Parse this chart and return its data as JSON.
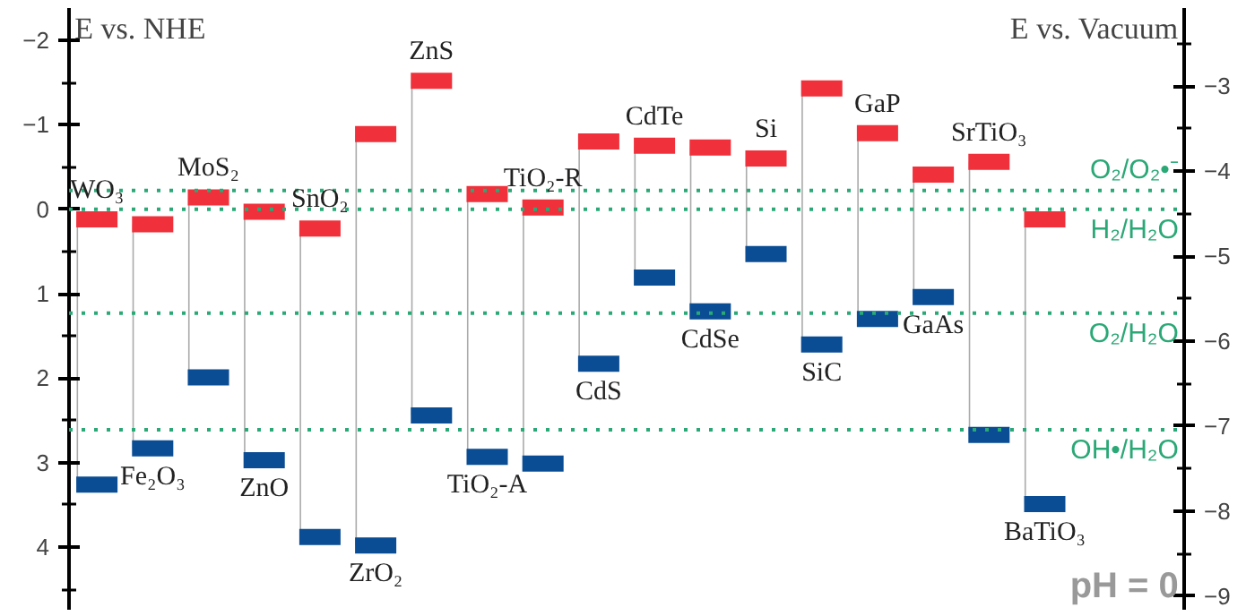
{
  "chart_data": {
    "type": "scatter",
    "ylabel": "E vs. NHE",
    "y2label": "E vs. Vacuum",
    "categories": [
      null,
      null,
      null,
      null,
      null,
      null,
      null,
      null,
      null,
      null,
      null,
      null,
      null,
      null,
      null,
      null,
      null,
      null,
      null,
      null
    ],
    "series": [
      {
        "color": "#f0303a",
        "values": [
          0.12,
          0.18,
          -0.14,
          0.03,
          0.23,
          -0.89,
          -1.52,
          -0.18,
          -0.02,
          -0.8,
          -0.75,
          -0.73,
          -0.6,
          -1.43,
          -0.9,
          -0.41,
          -0.56,
          0.12,
          null,
          null
        ]
      },
      {
        "color": "#0a4d94",
        "values": [
          3.26,
          2.83,
          1.99,
          2.97,
          3.88,
          3.98,
          2.44,
          2.93,
          3.01,
          1.83,
          0.81,
          1.21,
          0.53,
          1.6,
          1.3,
          1.04,
          2.67,
          3.49,
          null,
          null
        ]
      }
    ],
    "ylim": [
      4.74,
      -2.38
    ],
    "yticks": [
      -2,
      -1,
      0,
      1,
      2,
      3,
      4
    ],
    "y2lim": [
      -9.16,
      -2.08
    ],
    "y2ticks": [
      -3,
      -4,
      -5,
      -6,
      -7,
      -8,
      -9
    ],
    "ref_lines": [
      {
        "axis": "y",
        "value": -0.22,
        "label": "O₂/O₂•⁻",
        "color": "#2aa876",
        "line_style": "dotted"
      },
      {
        "axis": "y",
        "value": 0,
        "label": "H₂/H₂O",
        "color": "#2aa876",
        "line_style": "dotted"
      },
      {
        "axis": "y",
        "value": 1.23,
        "label": "O₂/H₂O",
        "color": "#2aa876",
        "line_style": "dotted"
      },
      {
        "axis": "y",
        "value": 2.61,
        "label": "OH•/H₂O",
        "color": "#2aa876",
        "line_style": "dotted"
      }
    ],
    "annotations": [
      {
        "text": "WO₃",
        "y": 0.12
      },
      {
        "text": "Fe₂O₃",
        "y": 2.83
      },
      {
        "text": "MoS₂",
        "y": -0.14
      },
      {
        "text": "ZnO",
        "y": 2.97
      },
      {
        "text": "SnO₂",
        "y": 0.23
      },
      {
        "text": "ZrO₂",
        "y": 3.98
      },
      {
        "text": "ZnS",
        "y": -1.52
      },
      {
        "text": "TiO₂-A",
        "y": 2.93
      },
      {
        "text": "TiO₂-R",
        "y": -0.02
      },
      {
        "text": "CdS",
        "y": 1.83
      },
      {
        "text": "CdTe",
        "y": -0.75
      },
      {
        "text": "CdSe",
        "y": 1.21
      },
      {
        "text": "Si",
        "y": -0.6
      },
      {
        "text": "SiC",
        "y": 1.6
      },
      {
        "text": "GaP",
        "y": -0.9
      },
      {
        "text": "GaAs",
        "y": 1.04
      },
      {
        "text": "SrTiO₃",
        "y": -0.56
      },
      {
        "text": "BaTiO₃",
        "y": 3.49
      },
      "pH = 0"
    ],
    "grid": false
  }
}
